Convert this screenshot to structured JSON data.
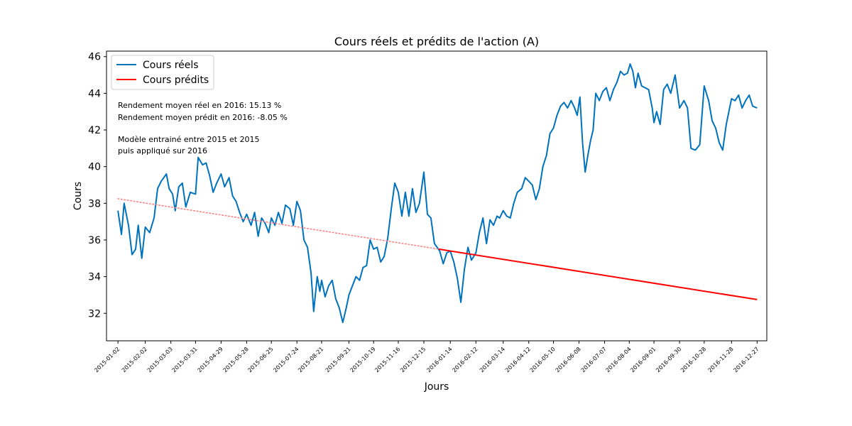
{
  "chart_data": {
    "type": "line",
    "title": "Cours réels et prédits de l'action (A)",
    "xlabel": "Jours",
    "ylabel": "Cours",
    "ylim": [
      30.5,
      46.3
    ],
    "yticks": [
      32,
      34,
      36,
      38,
      40,
      42,
      44,
      46
    ],
    "x_type": "date",
    "xlim": [
      "2014-12-20",
      "2017-01-07"
    ],
    "grid": false,
    "legend_position": "top-left",
    "xticks": [
      "2015-01-02",
      "2015-02-02",
      "2015-03-03",
      "2015-03-31",
      "2015-04-29",
      "2015-05-28",
      "2015-06-25",
      "2015-07-24",
      "2015-08-21",
      "2015-09-21",
      "2015-10-19",
      "2015-11-16",
      "2015-12-15",
      "2016-01-14",
      "2016-02-12",
      "2016-03-14",
      "2016-04-12",
      "2016-05-10",
      "2016-06-08",
      "2016-07-07",
      "2016-08-04",
      "2016-09-01",
      "2016-09-30",
      "2016-10-28",
      "2016-11-28",
      "2016-12-27"
    ],
    "annotations": [
      "Rendement moyen réel en 2016: 15.13 %",
      "Rendement moyen prédit en 2016: -8.05 %",
      "Modèle entrainé entre 2015 et 2015",
      "puis appliqué sur 2016"
    ],
    "series": [
      {
        "name": "Cours réels",
        "color": "#0072BD",
        "points": [
          [
            "2015-01-02",
            37.6
          ],
          [
            "2015-01-06",
            36.3
          ],
          [
            "2015-01-09",
            38.0
          ],
          [
            "2015-01-14",
            36.8
          ],
          [
            "2015-01-18",
            35.2
          ],
          [
            "2015-01-22",
            35.5
          ],
          [
            "2015-01-25",
            36.8
          ],
          [
            "2015-01-29",
            35.0
          ],
          [
            "2015-02-02",
            36.7
          ],
          [
            "2015-02-07",
            36.4
          ],
          [
            "2015-02-12",
            37.2
          ],
          [
            "2015-02-16",
            38.8
          ],
          [
            "2015-02-20",
            39.2
          ],
          [
            "2015-02-26",
            39.6
          ],
          [
            "2015-03-01",
            38.8
          ],
          [
            "2015-03-05",
            38.5
          ],
          [
            "2015-03-08",
            37.6
          ],
          [
            "2015-03-12",
            38.9
          ],
          [
            "2015-03-16",
            39.1
          ],
          [
            "2015-03-20",
            37.8
          ],
          [
            "2015-03-25",
            38.6
          ],
          [
            "2015-03-31",
            38.5
          ],
          [
            "2015-04-03",
            40.5
          ],
          [
            "2015-04-08",
            40.1
          ],
          [
            "2015-04-12",
            40.2
          ],
          [
            "2015-04-16",
            39.5
          ],
          [
            "2015-04-20",
            38.6
          ],
          [
            "2015-04-24",
            39.1
          ],
          [
            "2015-04-29",
            39.6
          ],
          [
            "2015-05-03",
            38.9
          ],
          [
            "2015-05-08",
            39.4
          ],
          [
            "2015-05-12",
            38.4
          ],
          [
            "2015-05-16",
            38.1
          ],
          [
            "2015-05-20",
            37.5
          ],
          [
            "2015-05-24",
            37.0
          ],
          [
            "2015-05-28",
            37.4
          ],
          [
            "2015-06-02",
            36.8
          ],
          [
            "2015-06-06",
            37.5
          ],
          [
            "2015-06-10",
            36.2
          ],
          [
            "2015-06-14",
            37.2
          ],
          [
            "2015-06-18",
            36.9
          ],
          [
            "2015-06-22",
            36.4
          ],
          [
            "2015-06-25",
            37.2
          ],
          [
            "2015-06-29",
            36.8
          ],
          [
            "2015-07-03",
            37.5
          ],
          [
            "2015-07-07",
            36.9
          ],
          [
            "2015-07-11",
            37.9
          ],
          [
            "2015-07-16",
            37.7
          ],
          [
            "2015-07-20",
            36.8
          ],
          [
            "2015-07-24",
            38.1
          ],
          [
            "2015-07-28",
            37.6
          ],
          [
            "2015-08-01",
            36.0
          ],
          [
            "2015-08-05",
            35.6
          ],
          [
            "2015-08-09",
            34.2
          ],
          [
            "2015-08-12",
            32.1
          ],
          [
            "2015-08-16",
            34.0
          ],
          [
            "2015-08-19",
            33.2
          ],
          [
            "2015-08-21",
            33.8
          ],
          [
            "2015-08-25",
            32.9
          ],
          [
            "2015-08-29",
            33.5
          ],
          [
            "2015-09-02",
            33.8
          ],
          [
            "2015-09-06",
            32.8
          ],
          [
            "2015-09-10",
            32.3
          ],
          [
            "2015-09-14",
            31.5
          ],
          [
            "2015-09-18",
            32.3
          ],
          [
            "2015-09-21",
            33.0
          ],
          [
            "2015-09-25",
            33.5
          ],
          [
            "2015-09-29",
            34.0
          ],
          [
            "2015-10-03",
            33.8
          ],
          [
            "2015-10-07",
            34.5
          ],
          [
            "2015-10-11",
            34.6
          ],
          [
            "2015-10-15",
            36.0
          ],
          [
            "2015-10-19",
            35.5
          ],
          [
            "2015-10-23",
            35.6
          ],
          [
            "2015-10-27",
            34.8
          ],
          [
            "2015-10-31",
            35.1
          ],
          [
            "2015-11-04",
            36.1
          ],
          [
            "2015-11-08",
            37.7
          ],
          [
            "2015-11-12",
            39.1
          ],
          [
            "2015-11-16",
            38.6
          ],
          [
            "2015-11-20",
            37.3
          ],
          [
            "2015-11-24",
            38.6
          ],
          [
            "2015-11-28",
            37.3
          ],
          [
            "2015-12-02",
            38.8
          ],
          [
            "2015-12-06",
            37.5
          ],
          [
            "2015-12-10",
            38.0
          ],
          [
            "2015-12-15",
            39.7
          ],
          [
            "2015-12-19",
            37.4
          ],
          [
            "2015-12-23",
            37.2
          ],
          [
            "2015-12-27",
            35.8
          ],
          [
            "2016-01-02",
            35.4
          ],
          [
            "2016-01-06",
            34.7
          ],
          [
            "2016-01-10",
            35.3
          ],
          [
            "2016-01-14",
            35.4
          ],
          [
            "2016-01-18",
            34.8
          ],
          [
            "2016-01-22",
            33.9
          ],
          [
            "2016-01-26",
            32.6
          ],
          [
            "2016-01-30",
            34.4
          ],
          [
            "2016-02-03",
            35.6
          ],
          [
            "2016-02-07",
            34.9
          ],
          [
            "2016-02-12",
            35.3
          ],
          [
            "2016-02-16",
            36.4
          ],
          [
            "2016-02-20",
            37.2
          ],
          [
            "2016-02-24",
            35.8
          ],
          [
            "2016-02-28",
            37.1
          ],
          [
            "2016-03-03",
            36.8
          ],
          [
            "2016-03-07",
            37.3
          ],
          [
            "2016-03-10",
            37.2
          ],
          [
            "2016-03-14",
            37.6
          ],
          [
            "2016-03-18",
            37.3
          ],
          [
            "2016-03-22",
            37.2
          ],
          [
            "2016-03-26",
            38.0
          ],
          [
            "2016-03-30",
            38.6
          ],
          [
            "2016-04-04",
            38.8
          ],
          [
            "2016-04-08",
            39.4
          ],
          [
            "2016-04-12",
            39.2
          ],
          [
            "2016-04-16",
            39.0
          ],
          [
            "2016-04-20",
            38.2
          ],
          [
            "2016-04-24",
            38.8
          ],
          [
            "2016-04-28",
            40.0
          ],
          [
            "2016-05-02",
            40.6
          ],
          [
            "2016-05-06",
            41.8
          ],
          [
            "2016-05-10",
            42.1
          ],
          [
            "2016-05-14",
            42.8
          ],
          [
            "2016-05-18",
            43.3
          ],
          [
            "2016-05-22",
            43.5
          ],
          [
            "2016-05-26",
            43.2
          ],
          [
            "2016-05-30",
            43.6
          ],
          [
            "2016-06-03",
            43.2
          ],
          [
            "2016-06-06",
            42.8
          ],
          [
            "2016-06-09",
            43.8
          ],
          [
            "2016-06-12",
            41.3
          ],
          [
            "2016-06-15",
            39.7
          ],
          [
            "2016-06-18",
            40.6
          ],
          [
            "2016-06-21",
            41.4
          ],
          [
            "2016-06-24",
            42.0
          ],
          [
            "2016-06-27",
            44.0
          ],
          [
            "2016-07-01",
            43.6
          ],
          [
            "2016-07-05",
            44.1
          ],
          [
            "2016-07-09",
            44.3
          ],
          [
            "2016-07-13",
            43.6
          ],
          [
            "2016-07-17",
            44.2
          ],
          [
            "2016-07-21",
            44.6
          ],
          [
            "2016-07-25",
            45.2
          ],
          [
            "2016-07-29",
            45.0
          ],
          [
            "2016-08-02",
            45.1
          ],
          [
            "2016-08-05",
            45.6
          ],
          [
            "2016-08-08",
            45.2
          ],
          [
            "2016-08-11",
            44.3
          ],
          [
            "2016-08-14",
            45.1
          ],
          [
            "2016-08-18",
            44.4
          ],
          [
            "2016-08-22",
            44.3
          ],
          [
            "2016-08-26",
            44.2
          ],
          [
            "2016-08-30",
            43.2
          ],
          [
            "2016-09-01",
            42.4
          ],
          [
            "2016-09-04",
            43.0
          ],
          [
            "2016-09-08",
            42.3
          ],
          [
            "2016-09-12",
            44.2
          ],
          [
            "2016-09-16",
            44.5
          ],
          [
            "2016-09-20",
            44.0
          ],
          [
            "2016-09-25",
            45.0
          ],
          [
            "2016-09-30",
            43.2
          ],
          [
            "2016-10-05",
            43.6
          ],
          [
            "2016-10-09",
            43.2
          ],
          [
            "2016-10-13",
            41.0
          ],
          [
            "2016-10-18",
            40.9
          ],
          [
            "2016-10-23",
            41.2
          ],
          [
            "2016-10-28",
            44.4
          ],
          [
            "2016-11-02",
            43.6
          ],
          [
            "2016-11-06",
            42.5
          ],
          [
            "2016-11-10",
            42.1
          ],
          [
            "2016-11-14",
            41.3
          ],
          [
            "2016-11-18",
            40.9
          ],
          [
            "2016-11-22",
            42.3
          ],
          [
            "2016-11-28",
            43.7
          ],
          [
            "2016-12-02",
            43.6
          ],
          [
            "2016-12-06",
            43.9
          ],
          [
            "2016-12-10",
            43.2
          ],
          [
            "2016-12-14",
            43.6
          ],
          [
            "2016-12-18",
            43.9
          ],
          [
            "2016-12-22",
            43.3
          ],
          [
            "2016-12-27",
            43.2
          ]
        ]
      },
      {
        "name": "Cours prédits",
        "color": "#FF0000",
        "points": [
          [
            "2016-01-01",
            35.5
          ],
          [
            "2016-12-27",
            32.75
          ]
        ]
      },
      {
        "name": "",
        "color": "#FF8080",
        "style": "dotted",
        "points": [
          [
            "2015-01-02",
            38.25
          ],
          [
            "2016-01-01",
            35.5
          ]
        ]
      }
    ]
  }
}
